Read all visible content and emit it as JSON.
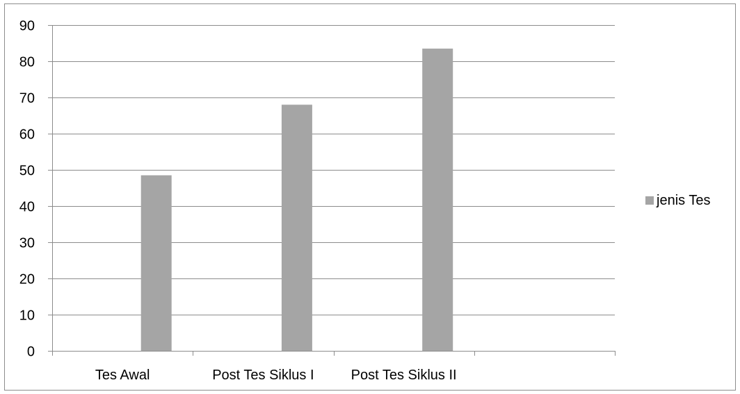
{
  "chart_data": {
    "type": "bar",
    "categories": [
      "Tes Awal",
      "Post Tes Siklus I",
      "Post Tes Siklus II",
      ""
    ],
    "series": [
      {
        "name": "jenis Tes",
        "values": [
          48.5,
          68,
          83.5,
          null
        ],
        "color": "#a5a5a5"
      }
    ],
    "ylim": [
      0,
      90
    ],
    "yticks": [
      0,
      10,
      20,
      30,
      40,
      50,
      60,
      70,
      80,
      90
    ],
    "grid": true,
    "legend_position": "right",
    "title": "",
    "xlabel": "",
    "ylabel": ""
  }
}
